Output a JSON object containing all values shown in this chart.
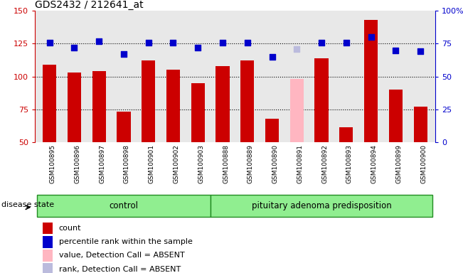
{
  "title": "GDS2432 / 212641_at",
  "samples": [
    "GSM100895",
    "GSM100896",
    "GSM100897",
    "GSM100898",
    "GSM100901",
    "GSM100902",
    "GSM100903",
    "GSM100888",
    "GSM100889",
    "GSM100890",
    "GSM100891",
    "GSM100892",
    "GSM100893",
    "GSM100894",
    "GSM100899",
    "GSM100900"
  ],
  "bar_values": [
    109,
    103,
    104,
    73,
    112,
    105,
    95,
    108,
    112,
    68,
    98,
    114,
    61,
    143,
    90,
    77
  ],
  "bar_colors": [
    "#cc0000",
    "#cc0000",
    "#cc0000",
    "#cc0000",
    "#cc0000",
    "#cc0000",
    "#cc0000",
    "#cc0000",
    "#cc0000",
    "#cc0000",
    "#ffb6c1",
    "#cc0000",
    "#cc0000",
    "#cc0000",
    "#cc0000",
    "#cc0000"
  ],
  "dot_values": [
    126,
    122,
    127,
    117,
    126,
    126,
    122,
    126,
    126,
    115,
    121,
    126,
    126,
    130,
    120,
    119
  ],
  "dot_colors": [
    "#0000cc",
    "#0000cc",
    "#0000cc",
    "#0000cc",
    "#0000cc",
    "#0000cc",
    "#0000cc",
    "#0000cc",
    "#0000cc",
    "#0000cc",
    "#bbbbdd",
    "#0000cc",
    "#0000cc",
    "#0000cc",
    "#0000cc",
    "#0000cc"
  ],
  "ylim_left": [
    50,
    150
  ],
  "ylim_right": [
    0,
    100
  ],
  "yticks_left": [
    50,
    75,
    100,
    125,
    150
  ],
  "yticks_right": [
    0,
    25,
    50,
    75,
    100
  ],
  "ytick_labels_right": [
    "0",
    "25",
    "50",
    "75",
    "100%"
  ],
  "hlines": [
    75,
    100,
    125
  ],
  "ctrl_count": 7,
  "group_labels": [
    "control",
    "pituitary adenoma predisposition"
  ],
  "group_box_color": "#90ee90",
  "group_box_edge": "#228B22",
  "disease_state_label": "disease state",
  "legend_items": [
    {
      "label": "count",
      "color": "#cc0000"
    },
    {
      "label": "percentile rank within the sample",
      "color": "#0000cc"
    },
    {
      "label": "value, Detection Call = ABSENT",
      "color": "#ffb6c1"
    },
    {
      "label": "rank, Detection Call = ABSENT",
      "color": "#bbbbdd"
    }
  ],
  "bar_width": 0.55,
  "dot_size": 40,
  "left_axis_color": "#cc0000",
  "right_axis_color": "#0000cc",
  "plot_bg_color": "#e8e8e8",
  "fig_bg_color": "#ffffff"
}
